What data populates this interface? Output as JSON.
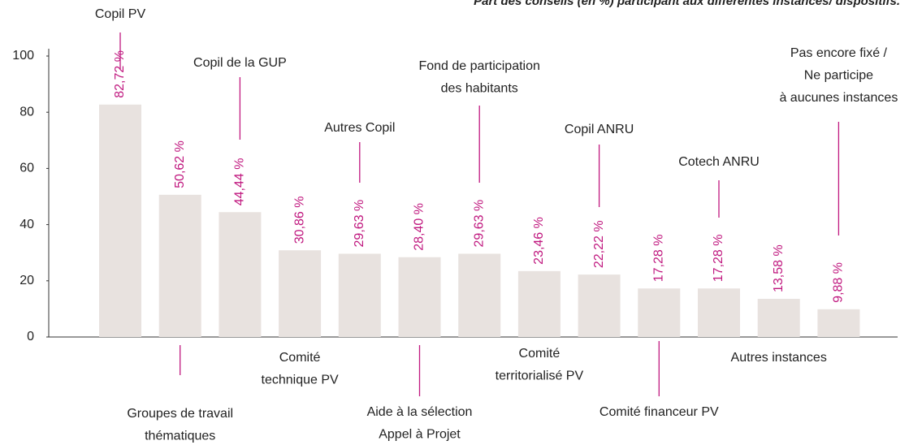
{
  "chart_data": {
    "type": "bar",
    "title": "Part des conseils (en %) participant aux différentes instances/ dispositifs.",
    "categories": [
      [
        "Copil PV"
      ],
      [
        "Groupes de travail",
        "thématiques"
      ],
      [
        "Copil de la GUP"
      ],
      [
        "Comité",
        "technique PV"
      ],
      [
        "Autres Copil"
      ],
      [
        "Aide à la sélection",
        "Appel à Projet"
      ],
      [
        "Fond de participation",
        "des habitants"
      ],
      [
        "Comité",
        "territorialisé PV"
      ],
      [
        "Copil ANRU"
      ],
      [
        "Comité financeur PV"
      ],
      [
        "Cotech ANRU"
      ],
      [
        "Autres instances"
      ],
      [
        "Pas encore fixé /",
        "Ne participe",
        "à aucunes instances"
      ]
    ],
    "values": [
      82.72,
      50.62,
      44.44,
      30.86,
      29.63,
      28.4,
      29.63,
      23.46,
      22.22,
      17.28,
      17.28,
      13.58,
      9.88
    ],
    "value_labels": [
      "82,72 %",
      "50,62 %",
      "44,44 %",
      "30,86 %",
      "29,63 %",
      "28,40 %",
      "29,63 %",
      "23,46 %",
      "22,22 %",
      "17,28 %",
      "17,28 %",
      "13,58 %",
      "9,88 %"
    ],
    "color": "#e8e2df",
    "label_color": "#c0187f",
    "ylim": [
      0,
      100
    ],
    "yticks": [
      0,
      20,
      40,
      60,
      80,
      100
    ]
  }
}
